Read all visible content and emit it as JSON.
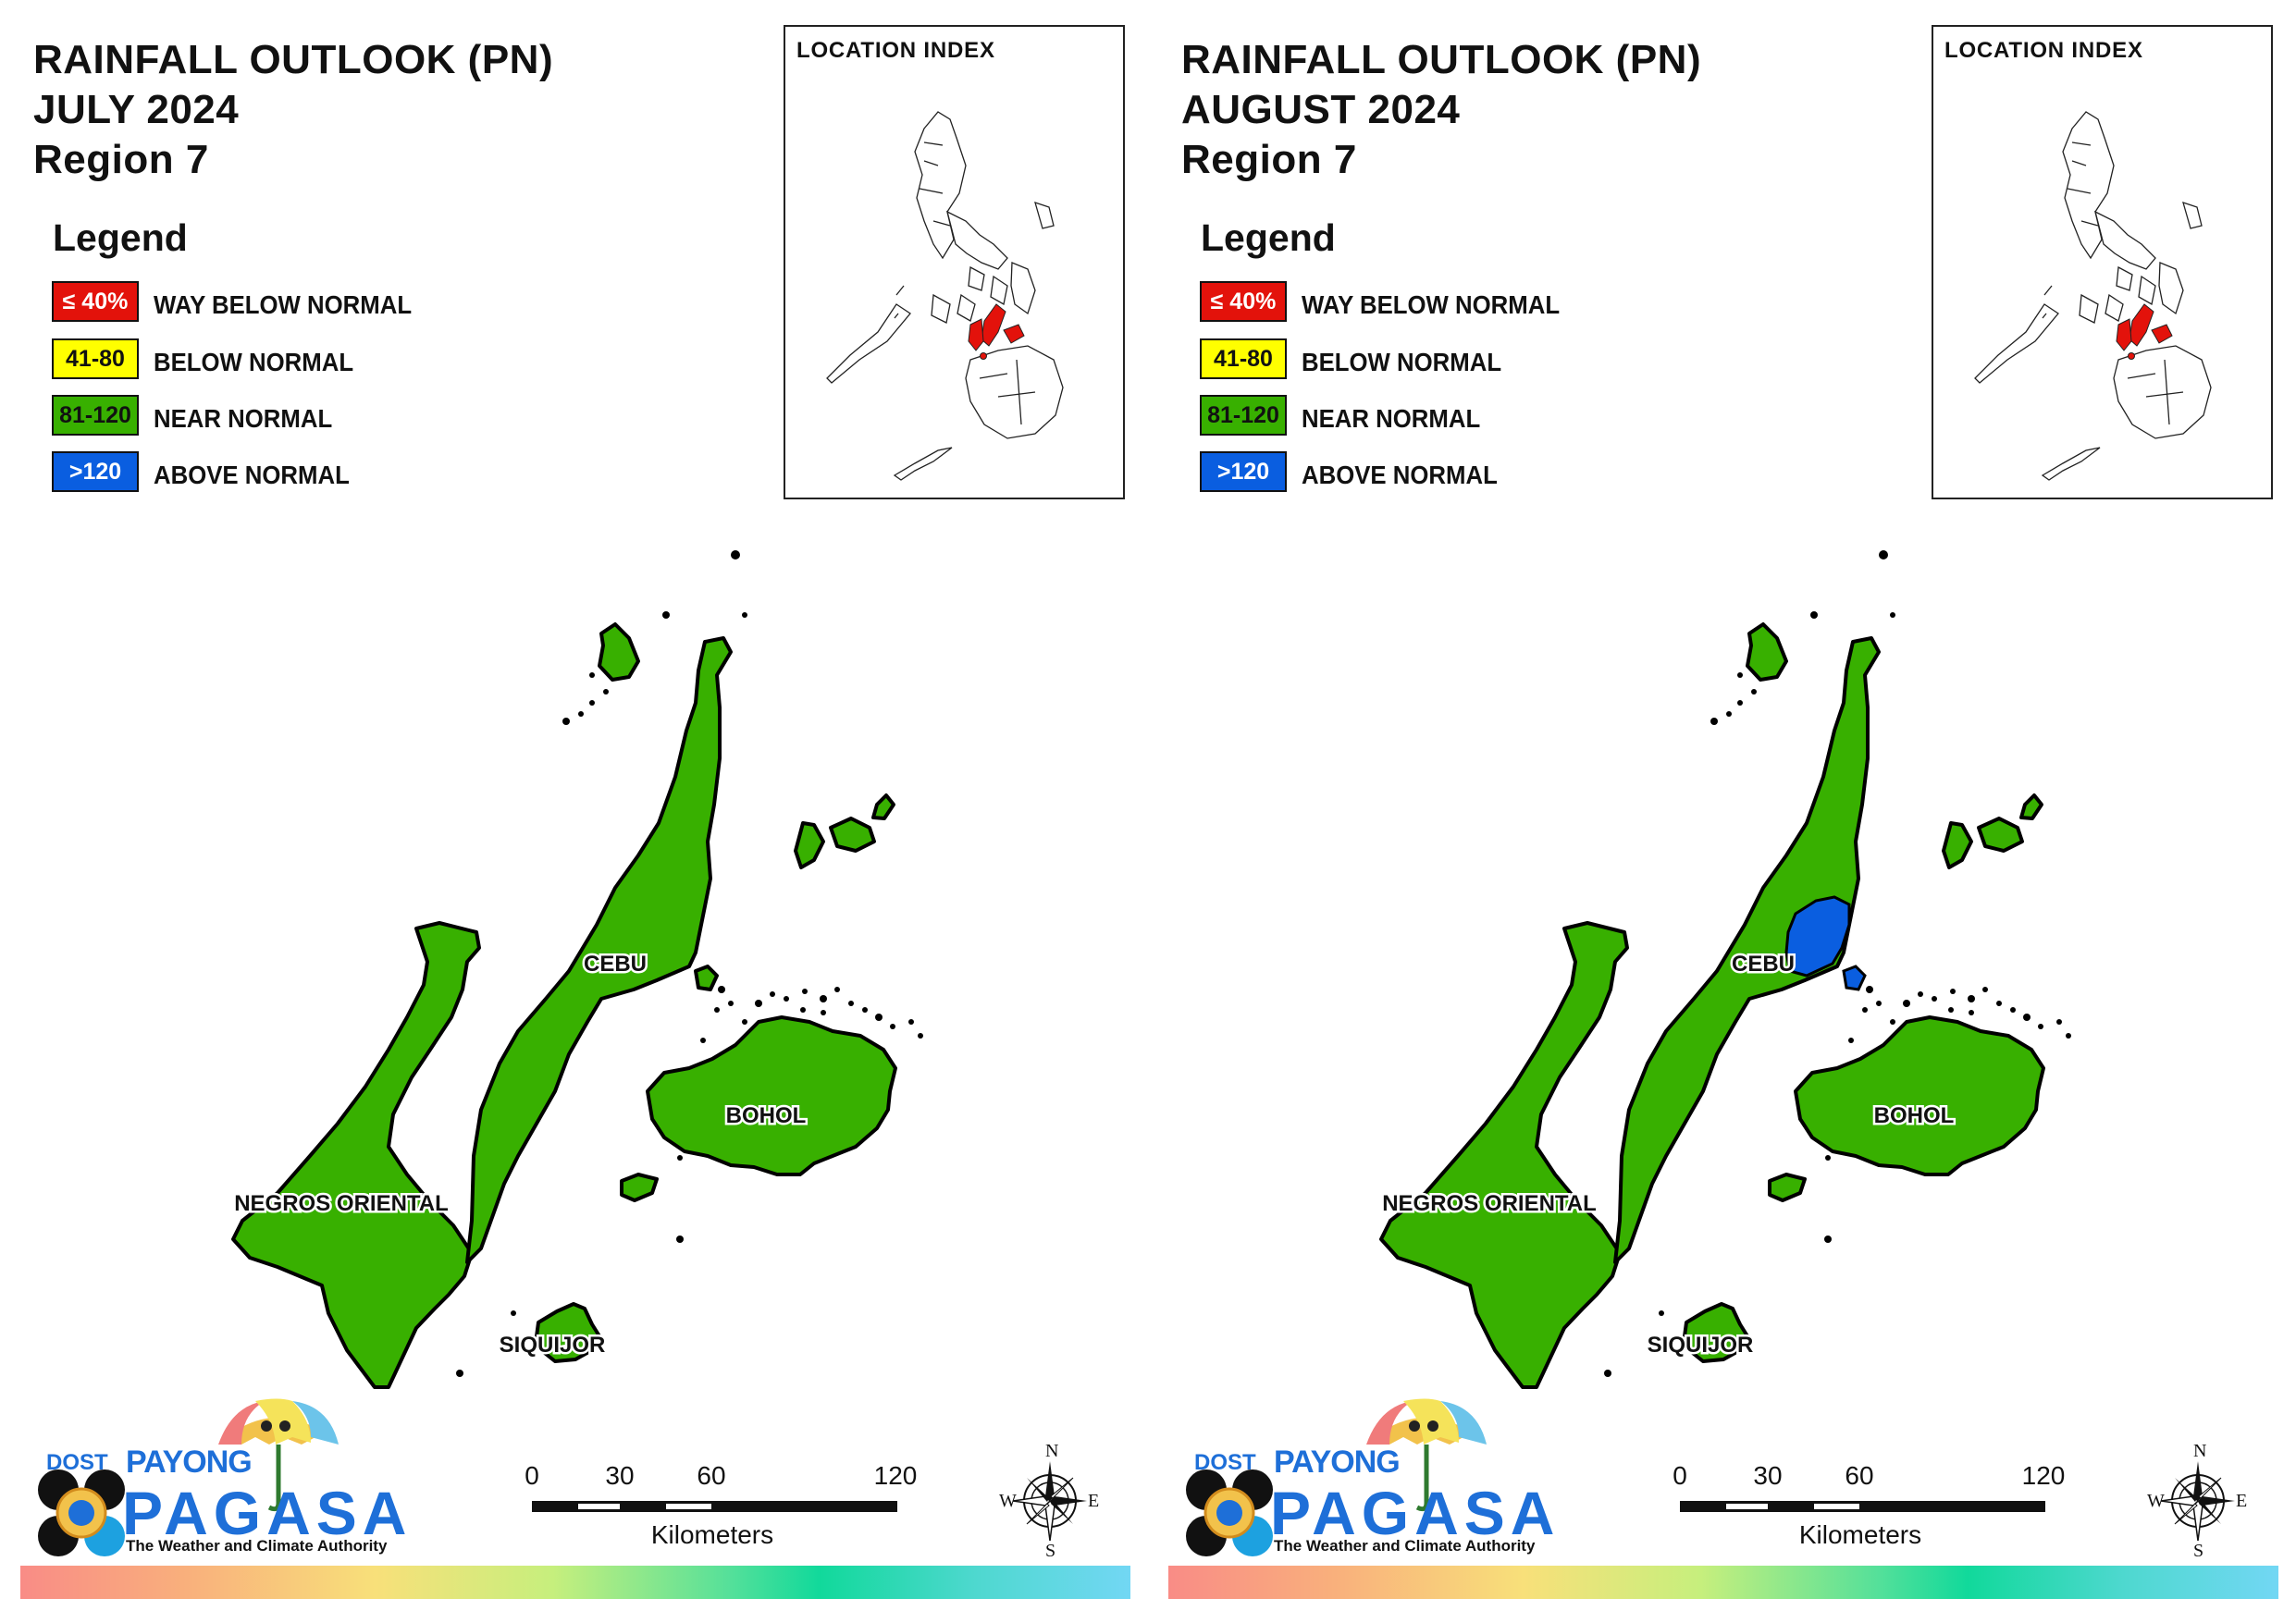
{
  "panels": [
    {
      "title": [
        "RAINFALL OUTLOOK (PN)",
        "JULY 2024",
        "Region 7"
      ],
      "legend": {
        "title": "Legend",
        "items": [
          {
            "swatch_text": "≤ 40%",
            "label": "WAY BELOW NORMAL",
            "color": "#e3120b",
            "text_color": "#ffffff"
          },
          {
            "swatch_text": "41-80",
            "label": "BELOW NORMAL",
            "color": "#ffff00",
            "text_color": "#111111"
          },
          {
            "swatch_text": "81-120",
            "label": "NEAR NORMAL",
            "color": "#38b000",
            "text_color": "#111111"
          },
          {
            "swatch_text": ">120",
            "label": "ABOVE NORMAL",
            "color": "#0a5ee0",
            "text_color": "#ffffff"
          }
        ]
      },
      "inset": {
        "title": "LOCATION INDEX"
      },
      "provinces": {
        "cebu": "CEBU",
        "bohol": "BOHOL",
        "negros": "NEGROS ORIENTAL",
        "siquijor": "SIQUIJOR"
      },
      "above_normal_area": false,
      "logo": {
        "dost": "DOST",
        "payong": "PAYONG",
        "pagasa": "PAGASA",
        "tagline": "The Weather and Climate Authority"
      },
      "scale": {
        "ticks": [
          "0",
          "30",
          "60",
          "120"
        ],
        "units": "Kilometers"
      },
      "compass": {
        "n": "N",
        "s": "S",
        "e": "E",
        "w": "W"
      }
    },
    {
      "title": [
        "RAINFALL OUTLOOK (PN)",
        "AUGUST 2024",
        "Region 7"
      ],
      "legend": {
        "title": "Legend",
        "items": [
          {
            "swatch_text": "≤ 40%",
            "label": "WAY BELOW NORMAL",
            "color": "#e3120b",
            "text_color": "#ffffff"
          },
          {
            "swatch_text": "41-80",
            "label": "BELOW NORMAL",
            "color": "#ffff00",
            "text_color": "#111111"
          },
          {
            "swatch_text": "81-120",
            "label": "NEAR NORMAL",
            "color": "#38b000",
            "text_color": "#111111"
          },
          {
            "swatch_text": ">120",
            "label": "ABOVE NORMAL",
            "color": "#0a5ee0",
            "text_color": "#ffffff"
          }
        ]
      },
      "inset": {
        "title": "LOCATION INDEX"
      },
      "provinces": {
        "cebu": "CEBU",
        "bohol": "BOHOL",
        "negros": "NEGROS ORIENTAL",
        "siquijor": "SIQUIJOR"
      },
      "above_normal_area": true,
      "logo": {
        "dost": "DOST",
        "payong": "PAYONG",
        "pagasa": "PAGASA",
        "tagline": "The Weather and Climate Authority"
      },
      "scale": {
        "ticks": [
          "0",
          "30",
          "60",
          "120"
        ],
        "units": "Kilometers"
      },
      "compass": {
        "n": "N",
        "s": "S",
        "e": "E",
        "w": "W"
      }
    }
  ],
  "colors": {
    "near_normal": "#38b000",
    "above_normal": "#0a5ee0",
    "highlight_region": "#e3120b",
    "outline": "#000000"
  }
}
